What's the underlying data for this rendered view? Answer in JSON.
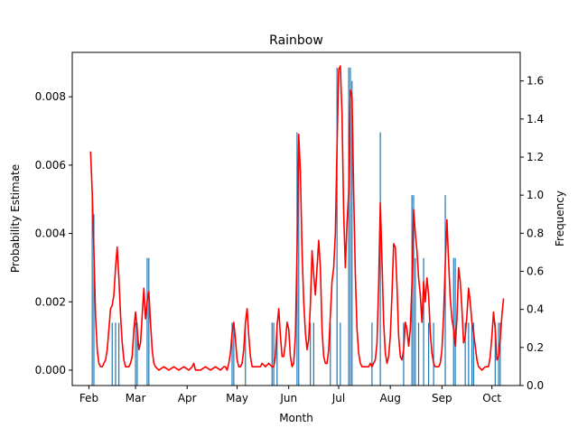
{
  "chart_data": {
    "type": "line",
    "title": "Rainbow",
    "xlabel": "Month",
    "ylabel_left": "Probability Estimate",
    "ylabel_right": "Frequency",
    "x_ticks": [
      {
        "day": 0,
        "label": "Feb"
      },
      {
        "day": 28,
        "label": "Mar"
      },
      {
        "day": 59,
        "label": "Apr"
      },
      {
        "day": 89,
        "label": "May"
      },
      {
        "day": 120,
        "label": "Jun"
      },
      {
        "day": 150,
        "label": "Jul"
      },
      {
        "day": 181,
        "label": "Aug"
      },
      {
        "day": 212,
        "label": "Sep"
      },
      {
        "day": 242,
        "label": "Oct"
      }
    ],
    "xlim_days": [
      -10,
      259
    ],
    "left_axis": {
      "ylim": [
        -0.00045,
        0.0093
      ],
      "ticks": [
        {
          "v": 0.0,
          "label": "0.000"
        },
        {
          "v": 0.002,
          "label": "0.002"
        },
        {
          "v": 0.004,
          "label": "0.004"
        },
        {
          "v": 0.006,
          "label": "0.006"
        },
        {
          "v": 0.008,
          "label": "0.008"
        }
      ]
    },
    "right_axis": {
      "ylim": [
        0.0,
        1.75
      ],
      "ticks": [
        {
          "v": 0.0,
          "label": "0.0"
        },
        {
          "v": 0.2,
          "label": "0.2"
        },
        {
          "v": 0.4,
          "label": "0.4"
        },
        {
          "v": 0.6,
          "label": "0.6"
        },
        {
          "v": 0.8,
          "label": "0.8"
        },
        {
          "v": 1.0,
          "label": "1.0"
        },
        {
          "v": 1.2,
          "label": "1.2"
        },
        {
          "v": 1.4,
          "label": "1.4"
        },
        {
          "v": 1.6,
          "label": "1.6"
        }
      ]
    },
    "series": [
      {
        "kind": "line",
        "color": "#ff0000",
        "axis": "left",
        "points": [
          [
            1,
            0.0064
          ],
          [
            2,
            0.0052
          ],
          [
            3,
            0.0035
          ],
          [
            4,
            0.0016
          ],
          [
            5,
            0.0006
          ],
          [
            6,
            0.0002
          ],
          [
            7,
            0.0001
          ],
          [
            8,
            0.0001
          ],
          [
            9,
            0.0002
          ],
          [
            10,
            0.0003
          ],
          [
            11,
            0.0006
          ],
          [
            12,
            0.0012
          ],
          [
            13,
            0.0018
          ],
          [
            14,
            0.0019
          ],
          [
            15,
            0.0022
          ],
          [
            16,
            0.003
          ],
          [
            17,
            0.0036
          ],
          [
            18,
            0.0027
          ],
          [
            19,
            0.0016
          ],
          [
            20,
            0.0008
          ],
          [
            21,
            0.0003
          ],
          [
            22,
            0.0001
          ],
          [
            23,
            0.0001
          ],
          [
            24,
            0.0001
          ],
          [
            25,
            0.0002
          ],
          [
            26,
            0.0004
          ],
          [
            27,
            0.0012
          ],
          [
            28,
            0.0017
          ],
          [
            29,
            0.0012
          ],
          [
            30,
            0.0006
          ],
          [
            31,
            0.0008
          ],
          [
            32,
            0.0016
          ],
          [
            33,
            0.0024
          ],
          [
            34,
            0.0015
          ],
          [
            35,
            0.002
          ],
          [
            36,
            0.0023
          ],
          [
            37,
            0.0014
          ],
          [
            38,
            0.0006
          ],
          [
            39,
            0.0002
          ],
          [
            40,
            0.0001
          ],
          [
            42,
            0.0
          ],
          [
            45,
            0.0001
          ],
          [
            48,
            0.0
          ],
          [
            51,
            0.0001
          ],
          [
            54,
            0.0
          ],
          [
            57,
            0.0001
          ],
          [
            60,
            0.0
          ],
          [
            62,
            0.0001
          ],
          [
            63,
            0.0002
          ],
          [
            64,
            0.0
          ],
          [
            67,
            0.0
          ],
          [
            70,
            0.0001
          ],
          [
            73,
            0.0
          ],
          [
            76,
            0.0001
          ],
          [
            79,
            0.0
          ],
          [
            81,
            0.0001
          ],
          [
            82,
            0.0001
          ],
          [
            83,
            0.0
          ],
          [
            84,
            0.0002
          ],
          [
            85,
            0.0005
          ],
          [
            86,
            0.0011
          ],
          [
            87,
            0.0014
          ],
          [
            88,
            0.0009
          ],
          [
            89,
            0.0003
          ],
          [
            90,
            0.0001
          ],
          [
            91,
            0.0001
          ],
          [
            92,
            0.0002
          ],
          [
            93,
            0.0006
          ],
          [
            94,
            0.0014
          ],
          [
            95,
            0.0018
          ],
          [
            96,
            0.001
          ],
          [
            97,
            0.0004
          ],
          [
            98,
            0.0001
          ],
          [
            100,
            0.0001
          ],
          [
            103,
            0.0001
          ],
          [
            104,
            0.0002
          ],
          [
            106,
            0.0001
          ],
          [
            108,
            0.0002
          ],
          [
            110,
            0.0001
          ],
          [
            111,
            0.0001
          ],
          [
            112,
            0.0004
          ],
          [
            113,
            0.0013
          ],
          [
            114,
            0.0018
          ],
          [
            115,
            0.001
          ],
          [
            116,
            0.0004
          ],
          [
            117,
            0.0004
          ],
          [
            118,
            0.0008
          ],
          [
            119,
            0.0014
          ],
          [
            120,
            0.0012
          ],
          [
            121,
            0.0004
          ],
          [
            122,
            0.0001
          ],
          [
            123,
            0.0002
          ],
          [
            124,
            0.001
          ],
          [
            125,
            0.0035
          ],
          [
            126,
            0.0069
          ],
          [
            127,
            0.0058
          ],
          [
            128,
            0.0035
          ],
          [
            129,
            0.002
          ],
          [
            130,
            0.0011
          ],
          [
            131,
            0.0006
          ],
          [
            132,
            0.0009
          ],
          [
            133,
            0.0019
          ],
          [
            134,
            0.0035
          ],
          [
            135,
            0.0028
          ],
          [
            136,
            0.0022
          ],
          [
            137,
            0.003
          ],
          [
            138,
            0.0038
          ],
          [
            139,
            0.003
          ],
          [
            140,
            0.0012
          ],
          [
            141,
            0.0004
          ],
          [
            142,
            0.0002
          ],
          [
            143,
            0.0002
          ],
          [
            144,
            0.0006
          ],
          [
            145,
            0.0016
          ],
          [
            146,
            0.0026
          ],
          [
            147,
            0.003
          ],
          [
            148,
            0.004
          ],
          [
            149,
            0.0065
          ],
          [
            150,
            0.0088
          ],
          [
            151,
            0.0089
          ],
          [
            152,
            0.0075
          ],
          [
            153,
            0.0046
          ],
          [
            154,
            0.003
          ],
          [
            155,
            0.0043
          ],
          [
            156,
            0.0052
          ],
          [
            157,
            0.0082
          ],
          [
            158,
            0.008
          ],
          [
            159,
            0.0052
          ],
          [
            160,
            0.0028
          ],
          [
            161,
            0.0012
          ],
          [
            162,
            0.0005
          ],
          [
            163,
            0.0002
          ],
          [
            164,
            0.0001
          ],
          [
            166,
            0.0001
          ],
          [
            168,
            0.0001
          ],
          [
            169,
            0.0002
          ],
          [
            170,
            0.0001
          ],
          [
            171,
            0.0002
          ],
          [
            172,
            0.0003
          ],
          [
            173,
            0.0008
          ],
          [
            174,
            0.0025
          ],
          [
            175,
            0.0049
          ],
          [
            176,
            0.0032
          ],
          [
            177,
            0.0014
          ],
          [
            178,
            0.0005
          ],
          [
            179,
            0.0002
          ],
          [
            180,
            0.0004
          ],
          [
            181,
            0.001
          ],
          [
            182,
            0.0022
          ],
          [
            183,
            0.0037
          ],
          [
            184,
            0.0036
          ],
          [
            185,
            0.0025
          ],
          [
            186,
            0.001
          ],
          [
            187,
            0.0004
          ],
          [
            188,
            0.0003
          ],
          [
            189,
            0.0006
          ],
          [
            190,
            0.0014
          ],
          [
            191,
            0.0012
          ],
          [
            192,
            0.0007
          ],
          [
            193,
            0.0012
          ],
          [
            194,
            0.0025
          ],
          [
            195,
            0.0047
          ],
          [
            196,
            0.004
          ],
          [
            197,
            0.0035
          ],
          [
            198,
            0.0027
          ],
          [
            199,
            0.0022
          ],
          [
            200,
            0.0014
          ],
          [
            201,
            0.0026
          ],
          [
            202,
            0.002
          ],
          [
            203,
            0.0027
          ],
          [
            204,
            0.0022
          ],
          [
            205,
            0.0011
          ],
          [
            206,
            0.0005
          ],
          [
            207,
            0.0002
          ],
          [
            208,
            0.0001
          ],
          [
            210,
            0.0001
          ],
          [
            211,
            0.0002
          ],
          [
            212,
            0.0006
          ],
          [
            213,
            0.0016
          ],
          [
            214,
            0.0031
          ],
          [
            215,
            0.0044
          ],
          [
            216,
            0.0032
          ],
          [
            217,
            0.0021
          ],
          [
            218,
            0.0015
          ],
          [
            219,
            0.0012
          ],
          [
            220,
            0.0007
          ],
          [
            221,
            0.0015
          ],
          [
            222,
            0.003
          ],
          [
            223,
            0.0026
          ],
          [
            224,
            0.0018
          ],
          [
            225,
            0.0008
          ],
          [
            226,
            0.001
          ],
          [
            227,
            0.0016
          ],
          [
            228,
            0.0024
          ],
          [
            229,
            0.002
          ],
          [
            230,
            0.0014
          ],
          [
            231,
            0.0011
          ],
          [
            232,
            0.0007
          ],
          [
            233,
            0.0003
          ],
          [
            234,
            0.0001
          ],
          [
            236,
            0.0
          ],
          [
            238,
            0.0001
          ],
          [
            240,
            0.0001
          ],
          [
            241,
            0.0004
          ],
          [
            242,
            0.001
          ],
          [
            243,
            0.0017
          ],
          [
            244,
            0.0012
          ],
          [
            245,
            0.0003
          ],
          [
            246,
            0.0004
          ],
          [
            247,
            0.0009
          ],
          [
            248,
            0.0016
          ],
          [
            249,
            0.0021
          ]
        ]
      },
      {
        "kind": "bar",
        "color": "#1f77b4",
        "axis": "right",
        "points": [
          [
            2,
            1.0
          ],
          [
            3,
            0.9
          ],
          [
            14,
            0.33
          ],
          [
            16,
            0.33
          ],
          [
            18,
            0.33
          ],
          [
            28,
            0.33
          ],
          [
            29,
            0.33
          ],
          [
            35,
            0.67
          ],
          [
            36,
            0.67
          ],
          [
            86,
            0.33
          ],
          [
            87,
            0.33
          ],
          [
            94,
            0.33
          ],
          [
            110,
            0.33
          ],
          [
            111,
            0.33
          ],
          [
            113,
            0.33
          ],
          [
            125,
            1.33
          ],
          [
            126,
            1.3
          ],
          [
            133,
            0.33
          ],
          [
            135,
            0.33
          ],
          [
            145,
            0.33
          ],
          [
            149,
            1.67
          ],
          [
            151,
            0.33
          ],
          [
            156,
            1.67
          ],
          [
            157,
            1.67
          ],
          [
            158,
            1.6
          ],
          [
            170,
            0.33
          ],
          [
            175,
            1.33
          ],
          [
            189,
            0.33
          ],
          [
            194,
            1.0
          ],
          [
            195,
            1.0
          ],
          [
            196,
            0.67
          ],
          [
            198,
            0.33
          ],
          [
            201,
            0.67
          ],
          [
            204,
            0.33
          ],
          [
            207,
            0.33
          ],
          [
            214,
            1.0
          ],
          [
            219,
            0.67
          ],
          [
            220,
            0.67
          ],
          [
            226,
            0.33
          ],
          [
            228,
            0.33
          ],
          [
            230,
            0.33
          ],
          [
            231,
            0.33
          ],
          [
            244,
            0.33
          ],
          [
            246,
            0.33
          ],
          [
            247,
            0.33
          ]
        ]
      }
    ]
  }
}
